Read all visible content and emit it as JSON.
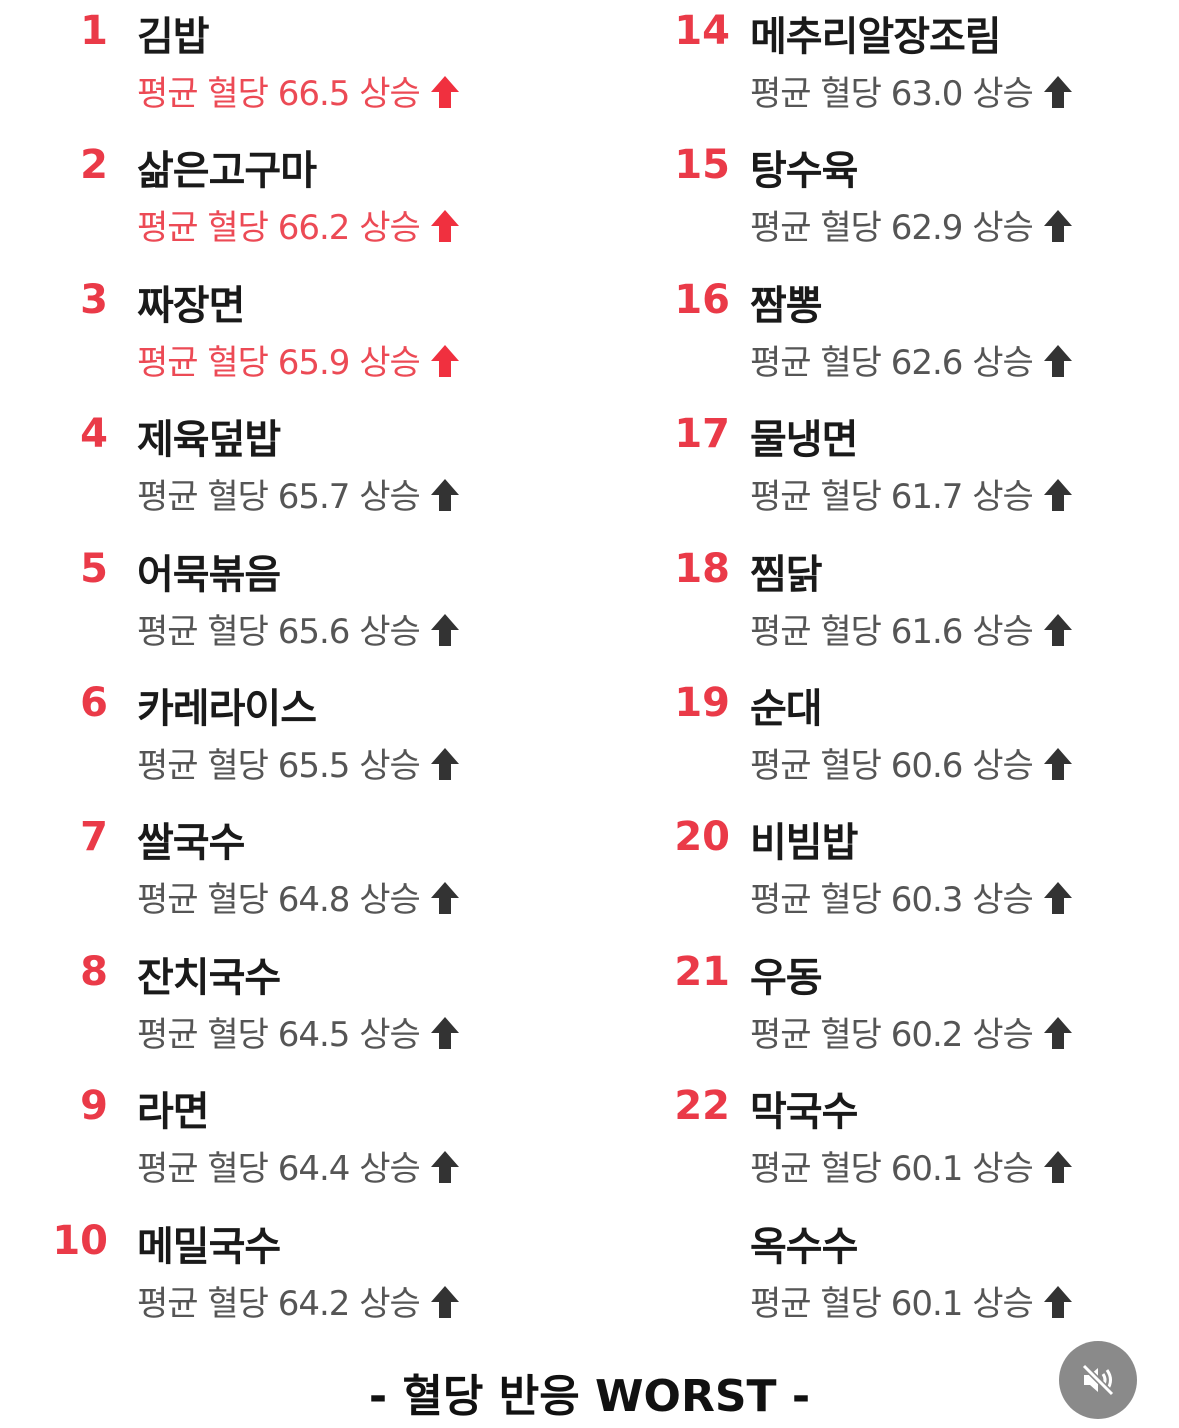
{
  "colors": {
    "rank": "#ea3a48",
    "hot_text": "#ec4a55",
    "normal_text": "#555555",
    "arrow_hot": "#f0303f",
    "arrow_normal": "#333333"
  },
  "items": [
    {
      "rank": "1",
      "name": "김밥",
      "sub": "평균 혈당 66.5 상승",
      "hot": true
    },
    {
      "rank": "2",
      "name": "삶은고구마",
      "sub": "평균 혈당 66.2 상승",
      "hot": true
    },
    {
      "rank": "3",
      "name": "짜장면",
      "sub": "평균 혈당 65.9 상승",
      "hot": true
    },
    {
      "rank": "4",
      "name": "제육덮밥",
      "sub": "평균 혈당 65.7 상승",
      "hot": false
    },
    {
      "rank": "5",
      "name": "어묵볶음",
      "sub": "평균 혈당 65.6 상승",
      "hot": false
    },
    {
      "rank": "6",
      "name": "카레라이스",
      "sub": "평균 혈당 65.5 상승",
      "hot": false
    },
    {
      "rank": "7",
      "name": "쌀국수",
      "sub": "평균 혈당 64.8 상승",
      "hot": false
    },
    {
      "rank": "8",
      "name": "잔치국수",
      "sub": "평균 혈당 64.5 상승",
      "hot": false
    },
    {
      "rank": "9",
      "name": "라면",
      "sub": "평균 혈당 64.4 상승",
      "hot": false
    },
    {
      "rank": "10",
      "name": "메밀국수",
      "sub": "평균 혈당 64.2 상승",
      "hot": false
    },
    {
      "rank": "14",
      "name": "메추리알장조림",
      "sub": "평균 혈당 63.0 상승",
      "hot": false
    },
    {
      "rank": "15",
      "name": "탕수육",
      "sub": "평균 혈당 62.9 상승",
      "hot": false
    },
    {
      "rank": "16",
      "name": "짬뽕",
      "sub": "평균 혈당 62.6 상승",
      "hot": false
    },
    {
      "rank": "17",
      "name": "물냉면",
      "sub": "평균 혈당 61.7 상승",
      "hot": false
    },
    {
      "rank": "18",
      "name": "찜닭",
      "sub": "평균 혈당 61.6 상승",
      "hot": false
    },
    {
      "rank": "19",
      "name": "순대",
      "sub": "평균 혈당 60.6 상승",
      "hot": false
    },
    {
      "rank": "20",
      "name": "비빔밥",
      "sub": "평균 혈당 60.3 상승",
      "hot": false
    },
    {
      "rank": "21",
      "name": "우동",
      "sub": "평균 혈당 60.2 상승",
      "hot": false
    },
    {
      "rank": "22",
      "name": "막국수",
      "sub": "평균 혈당 60.1 상승",
      "hot": false
    },
    {
      "rank": "",
      "name": "옥수수",
      "sub": "평균 혈당 60.1 상승",
      "hot": false
    }
  ],
  "footer": {
    "title": "- 혈당 반응 WORST -",
    "mute_icon": "speaker-muted-icon"
  }
}
